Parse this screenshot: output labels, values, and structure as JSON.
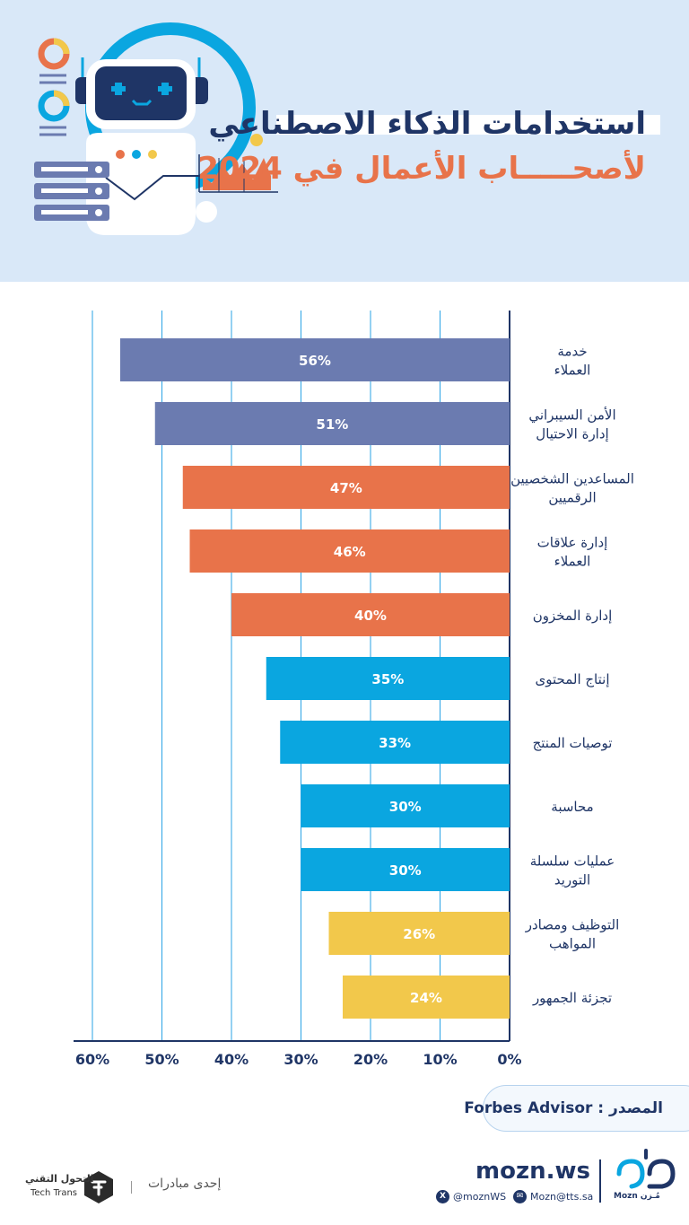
{
  "header": {
    "title_line1": "استخدامات الذكاء الاصطناعي",
    "title_line2": "لأصحـــــاب الأعمال في 2024"
  },
  "colors": {
    "header_bg": "#d9e8f8",
    "navy": "#1f3566",
    "purple_bar": "#6b7bb0",
    "orange_bar": "#e8734a",
    "blue_bar": "#0aa6e0",
    "yellow_bar": "#f2c84b",
    "grid": "#2aa3e6"
  },
  "chart_data": {
    "type": "bar",
    "orientation": "horizontal",
    "categories": [
      [
        "خدمة",
        "العملاء"
      ],
      [
        "الأمن السيبراني",
        "إدارة الاحتيال"
      ],
      [
        "المساعدين الشخصيين",
        "الرقميين"
      ],
      [
        "إدارة علاقات",
        "العملاء"
      ],
      [
        "إدارة المخزون"
      ],
      [
        "إنتاج المحتوى"
      ],
      [
        "توصيات المنتج"
      ],
      [
        "محاسبة"
      ],
      [
        "عمليات سلسلة",
        "التوريد"
      ],
      [
        "التوظيف ومصادر",
        "المواهب"
      ],
      [
        "تجزئة الجمهور"
      ]
    ],
    "values": [
      56,
      51,
      47,
      46,
      40,
      35,
      33,
      30,
      30,
      26,
      24
    ],
    "value_labels": [
      "56%",
      "51%",
      "47%",
      "46%",
      "40%",
      "35%",
      "33%",
      "30%",
      "30%",
      "26%",
      "24%"
    ],
    "bar_colors": [
      "#6b7bb0",
      "#6b7bb0",
      "#e8734a",
      "#e8734a",
      "#e8734a",
      "#0aa6e0",
      "#0aa6e0",
      "#0aa6e0",
      "#0aa6e0",
      "#f2c84b",
      "#f2c84b"
    ],
    "xlim": [
      0,
      60
    ],
    "x_direction": "right-to-left",
    "x_ticks": [
      60,
      50,
      40,
      30,
      20,
      10,
      0
    ],
    "x_tick_labels": [
      "60%",
      "50%",
      "40%",
      "30%",
      "20%",
      "10%",
      "0%"
    ],
    "grid": true,
    "title": "",
    "xlabel": "",
    "ylabel": ""
  },
  "source": {
    "text": "المصدر : Forbes Advisor"
  },
  "footer": {
    "brand": "mozn.ws",
    "logo_label": "Mozn  مُـزن",
    "email": "Mozn@tts.sa",
    "twitter": "@moznWS",
    "email_icon": "envelope-icon",
    "twitter_icon": "x-icon",
    "partner_label": "إحدى مبادرات",
    "partner_ar": "التحول التقني",
    "partner_en": "Tech Trans"
  }
}
